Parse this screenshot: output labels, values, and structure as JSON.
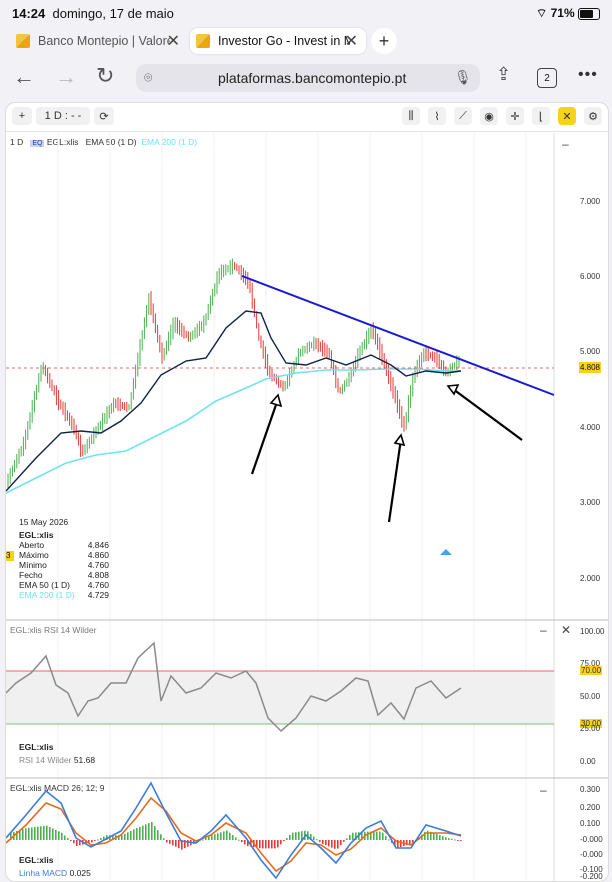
{
  "status": {
    "time": "14:24",
    "date": "domingo, 17 de maio",
    "battery": "71%"
  },
  "tabs": [
    {
      "label": "Banco Montepio | Valore",
      "active": false
    },
    {
      "label": "Investor Go - Invest in M",
      "active": true
    }
  ],
  "url": {
    "text": "plataformas.bancomontepio.pt",
    "tab_count": "2"
  },
  "toolbar": {
    "period": "1 D : - -",
    "add": "+"
  },
  "main_chart": {
    "interval": "1 D",
    "symbol": "EGL:xlis",
    "ema50_label": "EMA 50 (1 D)",
    "ema200_label": "EMA 200 (1 D)",
    "y_ticks": [
      "7.000",
      "6.000",
      "5.000",
      "4.000",
      "3.000",
      "2.000"
    ],
    "last_price": "4.808",
    "info": {
      "date": "15 May 2026",
      "symbol": "EGL:xlis",
      "rows": [
        {
          "label": "Aberto",
          "value": "4.846"
        },
        {
          "label": "Máximo",
          "value": "4.860"
        },
        {
          "label": "Mínimo",
          "value": "4.760"
        },
        {
          "label": "Fecho",
          "value": "4.808"
        },
        {
          "label": "EMA 50 (1 D)",
          "value": "4.760"
        },
        {
          "label": "EMA 200 (1 D)",
          "value": "4.729"
        }
      ]
    },
    "colors": {
      "up": "#4caf50",
      "down": "#e53935",
      "ema50": "#0d2347",
      "ema200": "#6ee3f0",
      "trendline": "#1a1ad6"
    }
  },
  "rsi_panel": {
    "title": "EGL:xlis RSI 14 Wilder",
    "symbol": "EGL:xlis",
    "label": "RSI 14 Wilder",
    "value": "51.68",
    "y_ticks": [
      "100.00",
      "75.00",
      "70.00",
      "50.00",
      "30.00",
      "25.00",
      "0.00"
    ]
  },
  "macd_panel": {
    "title": "EGL:xlis MACD 26; 12; 9",
    "symbol": "EGL:xlis",
    "label": "Linha MACD",
    "value": "0.025",
    "y_ticks": [
      "0.300",
      "0.200",
      "0.100",
      "-0.000",
      "-0.000",
      "-0.100",
      "-0.200"
    ]
  },
  "side_marker": "3"
}
